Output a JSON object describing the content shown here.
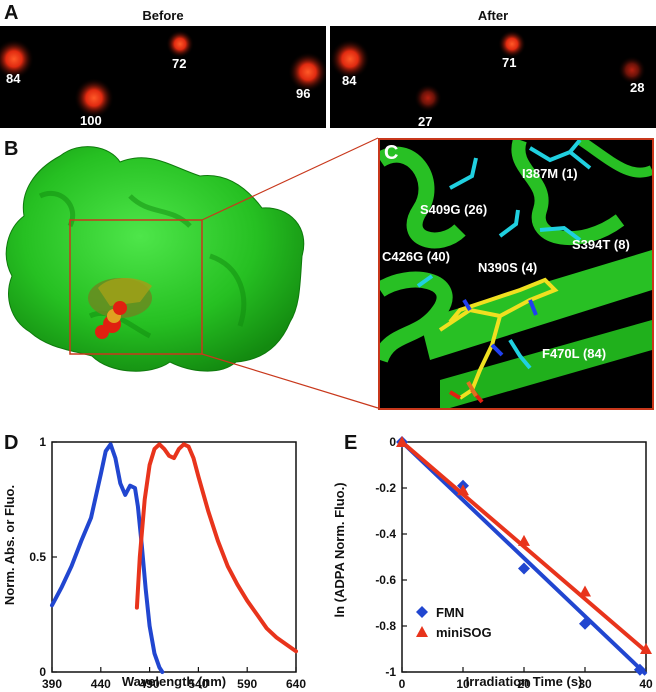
{
  "panels": {
    "a": {
      "letter": "A",
      "before_label": "Before",
      "after_label": "After",
      "before_values": [
        "84",
        "72",
        "96",
        "100"
      ],
      "after_values": [
        "84",
        "71",
        "28",
        "27"
      ]
    },
    "b": {
      "letter": "B"
    },
    "c": {
      "letter": "C",
      "mutations": [
        "I387M (1)",
        "S409G (26)",
        "C426G (40)",
        "N390S (4)",
        "S394T (8)",
        "F470L (84)"
      ]
    },
    "d": {
      "letter": "D"
    },
    "e": {
      "letter": "E"
    }
  },
  "colors": {
    "blue": "#2146d0",
    "red": "#e8341c",
    "green": "#22c01e",
    "box": "#c8381c"
  },
  "chart_data": [
    {
      "type": "line",
      "xlabel": "Wavelength (nm)",
      "ylabel": "Norm. Abs. or Fluo.",
      "xlim": [
        390,
        640
      ],
      "ylim": [
        0,
        1
      ],
      "x_ticks": [
        "390",
        "440",
        "490",
        "540",
        "590",
        "640"
      ],
      "y_ticks": [
        "0",
        "0.5",
        "1"
      ],
      "series": [
        {
          "color": "#2146d0",
          "x": [
            390,
            400,
            410,
            420,
            430,
            440,
            445,
            450,
            455,
            460,
            465,
            470,
            475,
            478,
            482,
            486,
            490,
            495,
            500,
            503
          ],
          "values": [
            0.29,
            0.37,
            0.46,
            0.57,
            0.67,
            0.86,
            0.96,
            0.99,
            0.93,
            0.82,
            0.77,
            0.81,
            0.8,
            0.72,
            0.55,
            0.36,
            0.2,
            0.08,
            0.02,
            0.0
          ]
        },
        {
          "color": "#e8341c",
          "x": [
            477,
            480,
            485,
            490,
            495,
            500,
            505,
            510,
            515,
            520,
            525,
            530,
            535,
            540,
            550,
            560,
            570,
            580,
            590,
            600,
            610,
            620,
            630,
            640
          ],
          "values": [
            0.28,
            0.5,
            0.75,
            0.9,
            0.97,
            0.99,
            0.97,
            0.94,
            0.93,
            0.97,
            0.99,
            0.98,
            0.93,
            0.85,
            0.7,
            0.57,
            0.46,
            0.38,
            0.31,
            0.25,
            0.19,
            0.15,
            0.12,
            0.09
          ]
        }
      ]
    },
    {
      "type": "scatter",
      "xlabel": "Irradiation Time (s)",
      "ylabel": "ln (ADPA Norm. Fluo.)",
      "xlim": [
        0,
        40
      ],
      "ylim": [
        -1,
        0
      ],
      "x_ticks": [
        "0",
        "10",
        "20",
        "30",
        "40"
      ],
      "y_ticks": [
        "0",
        "-0.2",
        "-0.4",
        "-0.6",
        "-0.8",
        "-1"
      ],
      "legend_position": "bottom-left",
      "series": [
        {
          "name": "FMN",
          "marker": "diamond",
          "color": "#2146d0",
          "x": [
            0,
            10,
            20,
            30,
            39
          ],
          "values": [
            0,
            -0.19,
            -0.55,
            -0.79,
            -0.99
          ],
          "fit": [
            [
              0,
              0
            ],
            [
              40,
              -1.01
            ]
          ]
        },
        {
          "name": "miniSOG",
          "marker": "triangle",
          "color": "#e8341c",
          "x": [
            0,
            10,
            20,
            30,
            40
          ],
          "values": [
            0,
            -0.21,
            -0.43,
            -0.65,
            -0.9
          ],
          "fit": [
            [
              0,
              0
            ],
            [
              40,
              -0.91
            ]
          ]
        }
      ]
    }
  ]
}
